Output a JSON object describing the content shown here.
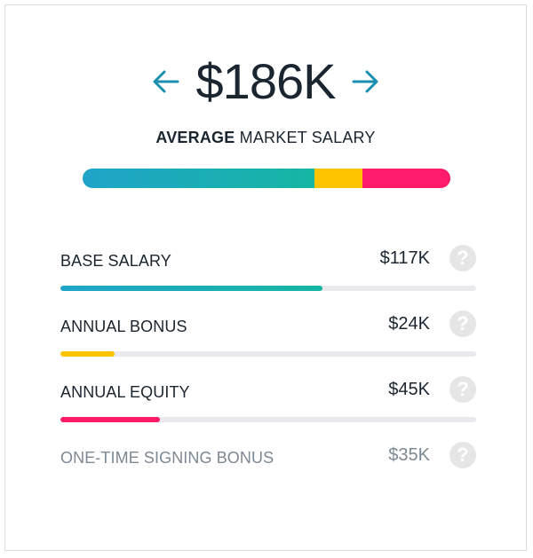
{
  "header": {
    "amount": "$186K",
    "prev_icon": "arrow-left-icon",
    "next_icon": "arrow-right-icon",
    "arrow_color": "#1a8fb0"
  },
  "subtitle": {
    "strong": "AVERAGE",
    "rest": " MARKET SALARY"
  },
  "total_bar": {
    "segments": [
      {
        "name": "base",
        "fraction": 0.63,
        "colors": [
          "#1fa4c9",
          "#16b6a3"
        ]
      },
      {
        "name": "bonus",
        "fraction": 0.13,
        "colors": [
          "#ffc400",
          "#ffc400"
        ]
      },
      {
        "name": "equity",
        "fraction": 0.24,
        "colors": [
          "#ff1a6a",
          "#ff1a6a"
        ]
      }
    ]
  },
  "rows": [
    {
      "label": "BASE SALARY",
      "value": "$117K",
      "fraction": 0.63,
      "colors": [
        "#1fa4c9",
        "#16b6a3"
      ],
      "muted": false
    },
    {
      "label": "ANNUAL BONUS",
      "value": "$24K",
      "fraction": 0.13,
      "colors": [
        "#ffc400",
        "#ffc400"
      ],
      "muted": false
    },
    {
      "label": "ANNUAL EQUITY",
      "value": "$45K",
      "fraction": 0.24,
      "colors": [
        "#ff1a6a",
        "#ff1a6a"
      ],
      "muted": false
    },
    {
      "label": "ONE-TIME SIGNING BONUS",
      "value": "$35K",
      "fraction": 0,
      "colors": [
        "#eaeaee",
        "#eaeaee"
      ],
      "muted": true
    }
  ],
  "help_icon": "question-circle-icon",
  "help_glyph": "?"
}
